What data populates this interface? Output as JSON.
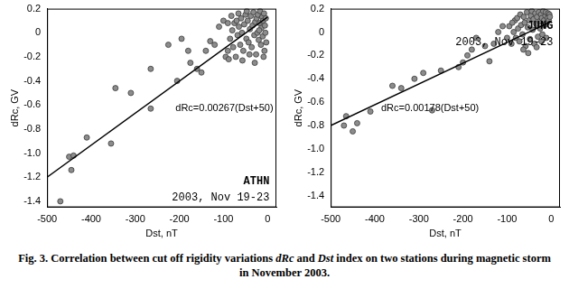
{
  "chart_data": [
    {
      "type": "scatter",
      "x_label": "Dst, nT",
      "y_label": "dRc, GV",
      "xlim": [
        -500,
        20
      ],
      "xticks": [
        -500,
        -400,
        -300,
        -200,
        -100,
        0
      ],
      "ylim": [
        -1.45,
        0.2
      ],
      "yticks": [
        -1.4,
        -1.2,
        {
          "value": -1,
          "label": "-1.0"
        },
        -0.8,
        -0.6,
        -0.4,
        -0.2,
        0,
        0.2
      ],
      "grid": false,
      "annotations": [
        "dRc=0.00267(Dst+50)",
        "ATHN",
        "2003, Nov 19-23"
      ],
      "series": [
        {
          "type": "scatter",
          "marker": "circle",
          "color": "#8c8c8c",
          "x": [
            -470,
            -450,
            -445,
            -440,
            -410,
            -355,
            -345,
            -310,
            -265,
            -265,
            -225,
            -205,
            -195,
            -180,
            -175,
            -160,
            -150,
            -140,
            -130,
            -120,
            -110,
            -100,
            -95,
            -90,
            -85,
            -80,
            -78,
            -75,
            -72,
            -70,
            -68,
            -65,
            -62,
            -60,
            -58,
            -55,
            -53,
            -50,
            -48,
            -45,
            -43,
            -40,
            -38,
            -36,
            -34,
            -32,
            -30,
            -28,
            -26,
            -25,
            -23,
            -22,
            -20,
            -18,
            -17,
            -15,
            -14,
            -12,
            -11,
            -10,
            -8,
            -7,
            -6,
            -5,
            -4,
            -3,
            -90,
            -88,
            -82,
            -66,
            -57,
            -47,
            -41,
            -29,
            -19,
            -9
          ],
          "values": [
            -1.4,
            -1.03,
            -1.14,
            -1.02,
            -0.87,
            -0.92,
            -0.46,
            -0.5,
            -0.63,
            -0.3,
            -0.1,
            -0.4,
            -0.05,
            -0.15,
            -0.25,
            -0.3,
            -0.33,
            -0.15,
            -0.07,
            -0.1,
            0.05,
            0.1,
            -0.2,
            -0.15,
            -0.05,
            0.02,
            -0.12,
            0.08,
            -0.2,
            0.1,
            -0.02,
            0.05,
            -0.1,
            0.12,
            0,
            -0.15,
            0.07,
            0.15,
            -0.05,
            0.1,
            -0.08,
            0.03,
            0.14,
            -0.12,
            0.06,
            0.17,
            -0.02,
            0.09,
            -0.18,
            0.12,
            0,
            0.15,
            -0.06,
            0.08,
            0.18,
            -0.1,
            0.04,
            0.13,
            -0.03,
            0.1,
            0.16,
            -0.15,
            0.06,
            0,
            0.12,
            -0.08,
            0.08,
            -0.22,
            0.14,
            0.16,
            -0.23,
            0.18,
            -0.18,
            -0.25,
            0.02,
            -0.2
          ]
        },
        {
          "type": "line",
          "line_style": "solid",
          "color": "#000000",
          "x": [
            -500,
            0
          ],
          "values": [
            -1.2,
            0.13
          ]
        }
      ]
    },
    {
      "type": "scatter",
      "x_label": "Dst, nT",
      "y_label": "dRc, GV",
      "xlim": [
        -500,
        20
      ],
      "xticks": [
        -500,
        -400,
        -300,
        -200,
        -100,
        0
      ],
      "ylim": [
        -1.5,
        0.2
      ],
      "yticks": [
        -1.4,
        -1.2,
        {
          "value": -1,
          "label": "-1.0"
        },
        -0.8,
        -0.6,
        -0.4,
        -0.2,
        0,
        0.2
      ],
      "grid": false,
      "annotations": [
        "dRc=0.00178(Dst+50)",
        "JUNG",
        "2003, Nov 19-23"
      ],
      "series": [
        {
          "type": "scatter",
          "marker": "circle",
          "color": "#8c8c8c",
          "x": [
            -470,
            -465,
            -450,
            -440,
            -410,
            -360,
            -340,
            -310,
            -290,
            -270,
            -250,
            -210,
            -200,
            -190,
            -180,
            -170,
            -150,
            -140,
            -130,
            -120,
            -110,
            -100,
            -95,
            -90,
            -85,
            -82,
            -80,
            -77,
            -75,
            -72,
            -70,
            -68,
            -65,
            -62,
            -60,
            -58,
            -55,
            -53,
            -50,
            -48,
            -46,
            -44,
            -42,
            -40,
            -38,
            -36,
            -34,
            -32,
            -30,
            -28,
            -26,
            -25,
            -23,
            -21,
            -20,
            -18,
            -16,
            -15,
            -13,
            -12,
            -10,
            -8,
            -7,
            -5,
            -4,
            -3,
            -88,
            -63,
            -52,
            -33,
            -22,
            -11
          ],
          "values": [
            -0.8,
            -0.72,
            -0.85,
            -0.78,
            -0.68,
            -0.46,
            -0.48,
            -0.4,
            -0.35,
            -0.67,
            -0.33,
            -0.3,
            -0.26,
            -0.2,
            -0.15,
            -0.05,
            -0.12,
            -0.25,
            -0.1,
            0,
            0.05,
            -0.05,
            0.05,
            -0.1,
            0,
            0.1,
            -0.05,
            0.12,
            0.03,
            -0.08,
            0.15,
            0.06,
            -0.02,
            0.13,
            0.08,
            -0.12,
            0.17,
            0.04,
            0.1,
            -0.06,
            0.14,
            0.18,
            0.02,
            0.11,
            -0.1,
            0.16,
            0.07,
            0.13,
            -0.04,
            0.17,
            0.09,
            0.03,
            0.15,
            0.12,
            -0.02,
            0.18,
            0.1,
            0.06,
            0.14,
            0.17,
            0.08,
            0.12,
            0.16,
            0.1,
            0.15,
            0.13,
            0.08,
            -0.15,
            -0.18,
            -0.13,
            -0.08,
            -0.05
          ]
        },
        {
          "type": "line",
          "line_style": "solid",
          "color": "#000000",
          "x": [
            -500,
            0
          ],
          "values": [
            -0.8,
            0.09
          ]
        }
      ]
    }
  ],
  "caption": [
    {
      "text": "Fig. 3.",
      "style": "normal"
    },
    {
      "text": " Correlation between cut off rigidity variations ",
      "style": "normal"
    },
    {
      "text": "dRc",
      "style": "italic"
    },
    {
      "text": " and ",
      "style": "normal"
    },
    {
      "text": "Dst",
      "style": "italic"
    },
    {
      "text": " index on two stations during magnetic storm in November 2003.",
      "style": "normal"
    }
  ]
}
